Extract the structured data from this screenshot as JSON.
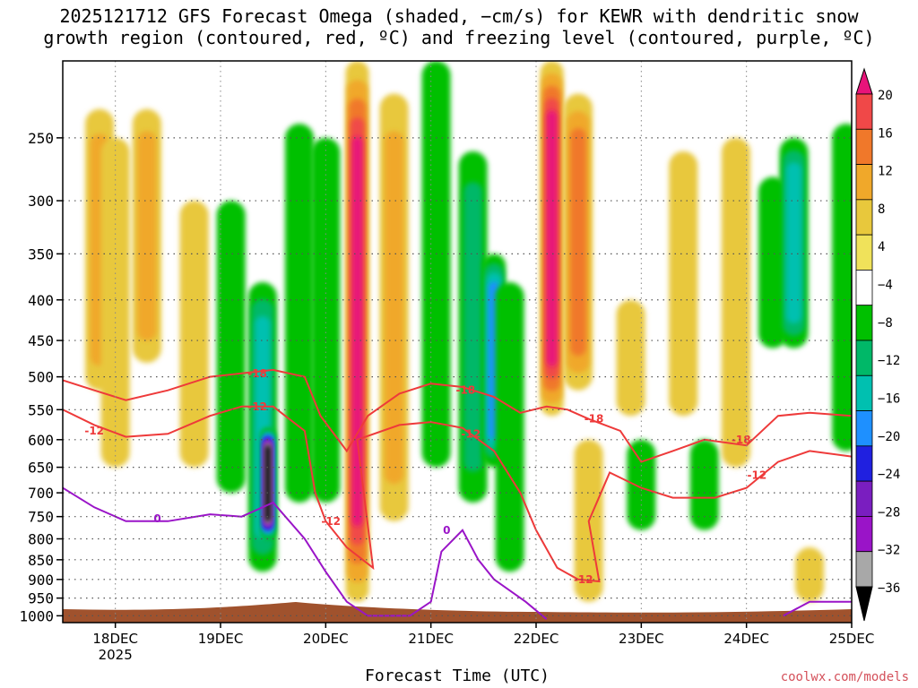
{
  "title_line1": "2025121712 GFS Forecast Omega (shaded, −cm/s) for KEWR with dendritic snow",
  "title_line2": "growth region (contoured, red, ºC) and freezing level (contoured, purple, ºC)",
  "credit": "coolwx.com/models",
  "chart_data": {
    "type": "heatmap",
    "title": "2025121712 GFS Forecast Omega (shaded, −cm/s) for KEWR with dendritic snow growth region (contoured, red, ºC) and freezing level (contoured, purple, ºC)",
    "xlabel": "Forecast Time (UTC)",
    "ylabel": "",
    "x_ticks": [
      "18DEC",
      "19DEC",
      "20DEC",
      "21DEC",
      "22DEC",
      "23DEC",
      "24DEC",
      "25DEC"
    ],
    "x_tick_year": "2025",
    "xlim_days": [
      17.5,
      25.0
    ],
    "y_ticks": [
      250,
      300,
      350,
      400,
      450,
      500,
      550,
      600,
      650,
      700,
      750,
      800,
      850,
      900,
      950,
      1000
    ],
    "ylim": [
      200,
      1020
    ],
    "y_scale": "log-pressure, inverted",
    "grid": true,
    "colorbar": {
      "labels": [
        "20",
        "16",
        "12",
        "8",
        "4",
        "−4",
        "−8",
        "−12",
        "−16",
        "−20",
        "−24",
        "−28",
        "−32",
        "−36"
      ],
      "colors": [
        "#e8147a",
        "#f04848",
        "#f0782a",
        "#f0a82a",
        "#e8c83c",
        "#f0e25a",
        "#ffffff",
        "#00c000",
        "#00b868",
        "#00c0b0",
        "#1e90ff",
        "#2020e0",
        "#7a1ec0",
        "#9a14c8",
        "#a8a8a8",
        "#000000"
      ]
    },
    "omega_features": [
      {
        "day": 17.85,
        "p_top": 230,
        "p_bot": 520,
        "value": 10
      },
      {
        "day": 18.0,
        "p_top": 250,
        "p_bot": 650,
        "value": 5
      },
      {
        "day": 18.3,
        "p_top": 230,
        "p_bot": 480,
        "value": 9
      },
      {
        "day": 18.75,
        "p_top": 300,
        "p_bot": 650,
        "value": 5
      },
      {
        "day": 19.1,
        "p_top": 300,
        "p_bot": 700,
        "value": -6
      },
      {
        "day": 19.4,
        "p_top": 380,
        "p_bot": 880,
        "value": -14
      },
      {
        "day": 19.45,
        "p_top": 580,
        "p_bot": 800,
        "value": -36
      },
      {
        "day": 19.75,
        "p_top": 240,
        "p_bot": 720,
        "value": -7
      },
      {
        "day": 20.0,
        "p_top": 250,
        "p_bot": 720,
        "value": -5
      },
      {
        "day": 20.3,
        "p_top": 200,
        "p_bot": 960,
        "value": 21
      },
      {
        "day": 20.65,
        "p_top": 220,
        "p_bot": 760,
        "value": 9
      },
      {
        "day": 21.05,
        "p_top": 200,
        "p_bot": 650,
        "value": -7
      },
      {
        "day": 21.4,
        "p_top": 260,
        "p_bot": 720,
        "value": -9
      },
      {
        "day": 21.6,
        "p_top": 350,
        "p_bot": 650,
        "value": -17
      },
      {
        "day": 21.75,
        "p_top": 380,
        "p_bot": 880,
        "value": -6
      },
      {
        "day": 22.15,
        "p_top": 200,
        "p_bot": 560,
        "value": 20
      },
      {
        "day": 22.4,
        "p_top": 220,
        "p_bot": 520,
        "value": 12
      },
      {
        "day": 22.5,
        "p_top": 600,
        "p_bot": 960,
        "value": 6
      },
      {
        "day": 22.9,
        "p_top": 400,
        "p_bot": 560,
        "value": 5
      },
      {
        "day": 23.0,
        "p_top": 600,
        "p_bot": 780,
        "value": -7
      },
      {
        "day": 23.4,
        "p_top": 260,
        "p_bot": 560,
        "value": 5
      },
      {
        "day": 23.6,
        "p_top": 600,
        "p_bot": 780,
        "value": -7
      },
      {
        "day": 23.9,
        "p_top": 250,
        "p_bot": 650,
        "value": 5
      },
      {
        "day": 24.25,
        "p_top": 280,
        "p_bot": 460,
        "value": -7
      },
      {
        "day": 24.45,
        "p_top": 250,
        "p_bot": 460,
        "value": -14
      },
      {
        "day": 24.6,
        "p_top": 820,
        "p_bot": 960,
        "value": 6
      },
      {
        "day": 24.95,
        "p_top": 240,
        "p_bot": 620,
        "value": -6
      }
    ],
    "contour_labels": [
      {
        "text": "-18",
        "color": "red",
        "day": 19.35,
        "p": 495
      },
      {
        "text": "-12",
        "color": "red",
        "day": 19.35,
        "p": 545
      },
      {
        "text": "-12",
        "color": "red",
        "day": 17.8,
        "p": 585
      },
      {
        "text": "-12",
        "color": "red",
        "day": 20.05,
        "p": 760
      },
      {
        "text": "-18",
        "color": "red",
        "day": 21.33,
        "p": 520
      },
      {
        "text": "-12",
        "color": "red",
        "day": 21.38,
        "p": 590
      },
      {
        "text": "-18",
        "color": "red",
        "day": 22.55,
        "p": 565
      },
      {
        "text": "-12",
        "color": "red",
        "day": 22.45,
        "p": 900
      },
      {
        "text": "-18",
        "color": "red",
        "day": 23.95,
        "p": 600
      },
      {
        "text": "-12",
        "color": "red",
        "day": 24.1,
        "p": 665
      },
      {
        "text": "0",
        "color": "purple",
        "day": 18.4,
        "p": 755
      },
      {
        "text": "0",
        "color": "purple",
        "day": 21.15,
        "p": 780
      }
    ]
  }
}
